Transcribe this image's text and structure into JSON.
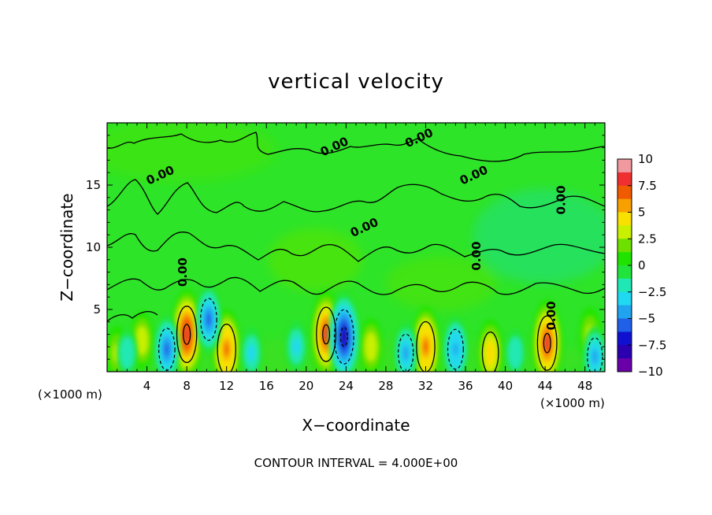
{
  "chart_data": {
    "type": "heatmap",
    "title": "vertical velocity",
    "xlabel": "X−coordinate",
    "ylabel": "Z−coordinate",
    "x_unit_left": "(×1000 m)",
    "x_unit_right": "(×1000 m)",
    "footer": "CONTOUR INTERVAL = 4.000E+00",
    "xlim": [
      0,
      50
    ],
    "ylim": [
      0,
      20
    ],
    "x_ticks": [
      4,
      8,
      12,
      16,
      20,
      24,
      28,
      32,
      36,
      40,
      44,
      48
    ],
    "y_ticks": [
      5,
      10,
      15
    ],
    "contour_labels": [
      "0.00",
      "0.00",
      "0.00",
      "0.00",
      "0.00",
      "0.00",
      "0.00",
      "0.00",
      "0.00"
    ],
    "colorbar": {
      "ticks": [
        "10",
        "7.5",
        "5",
        "2.5",
        "0",
        "−2.5",
        "−5",
        "−7.5",
        "−10"
      ],
      "range": [
        -10,
        10
      ],
      "colors": [
        "#f09aa0",
        "#f03030",
        "#f05a00",
        "#f8a000",
        "#f8e000",
        "#c8f000",
        "#6ee000",
        "#20e400",
        "#20e43c",
        "#20e8b4",
        "#20d8f0",
        "#20a4f0",
        "#2060e8",
        "#1010d0",
        "#2a00b0",
        "#6a00a8"
      ]
    },
    "grid": false,
    "features": {
      "updrafts": [
        {
          "x": 8.0,
          "z": 3.0,
          "w": 8.5
        },
        {
          "x": 12.0,
          "z": 1.8,
          "w": 7.0
        },
        {
          "x": 22.0,
          "z": 3.0,
          "w": 8.0
        },
        {
          "x": 32.0,
          "z": 2.0,
          "w": 7.0
        },
        {
          "x": 44.2,
          "z": 2.3,
          "w": 8.0
        },
        {
          "x": 38.5,
          "z": 1.5,
          "w": 5.0
        },
        {
          "x": 3.5,
          "z": 2.5,
          "w": 3.5
        },
        {
          "x": 26.5,
          "z": 2.0,
          "w": 3.5
        },
        {
          "x": 1.0,
          "z": 1.5,
          "w": 3.0
        },
        {
          "x": 48.5,
          "z": 3.0,
          "w": 3.0
        }
      ],
      "downdrafts": [
        {
          "x": 6.0,
          "z": 1.8,
          "w": -5.0
        },
        {
          "x": 10.2,
          "z": 4.2,
          "w": -5.0
        },
        {
          "x": 23.8,
          "z": 2.8,
          "w": -8.0
        },
        {
          "x": 30.0,
          "z": 1.5,
          "w": -4.0
        },
        {
          "x": 35.0,
          "z": 1.8,
          "w": -4.5
        },
        {
          "x": 49.0,
          "z": 1.2,
          "w": -4.0
        },
        {
          "x": 2.0,
          "z": 1.5,
          "w": -2.0
        },
        {
          "x": 14.5,
          "z": 1.5,
          "w": -2.5
        },
        {
          "x": 19.0,
          "z": 2.0,
          "w": -2.5
        },
        {
          "x": 41.0,
          "z": 1.5,
          "w": -2.0
        }
      ]
    }
  }
}
